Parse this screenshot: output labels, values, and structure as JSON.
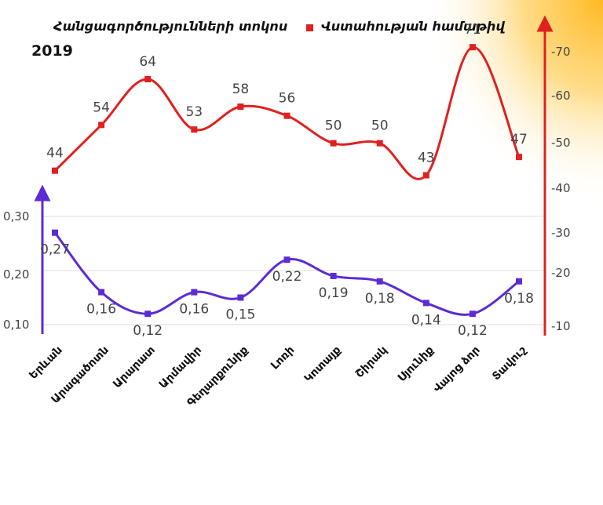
{
  "chart_data": {
    "type": "line",
    "year": "2019",
    "categories": [
      "Երևան",
      "Արագածոտն",
      "Արարատ",
      "Արմավիր",
      "Գեղարքունիք",
      "Լոռի",
      "Կոտայք",
      "Շիրակ",
      "Սյունիք",
      "Վայոց ձոր",
      "Տավուշ"
    ],
    "series": [
      {
        "name": "Հանցագործությունների տոկոս",
        "axis": "left",
        "color": "#5b2bd6",
        "values": [
          0.27,
          0.16,
          0.12,
          0.16,
          0.15,
          0.22,
          0.19,
          0.18,
          0.14,
          0.12,
          0.18
        ],
        "labels": [
          "0,27",
          "0,16",
          "0,12",
          "0,16",
          "0,15",
          "0,22",
          "0,19",
          "0,18",
          "0,14",
          "0,12",
          "0,18"
        ]
      },
      {
        "name": "Վստահության համաթիվ",
        "axis": "right",
        "color": "#e0201f",
        "values": [
          44,
          54,
          64,
          53,
          58,
          56,
          50,
          50,
          43,
          71,
          47
        ],
        "labels": [
          "44",
          "54",
          "64",
          "53",
          "58",
          "56",
          "50",
          "50",
          "43",
          "71",
          "47"
        ]
      }
    ],
    "left_axis": {
      "ticks": [
        "0,10",
        "0,20",
        "0,30"
      ]
    },
    "right_axis": {
      "ticks": [
        "-10",
        "-20",
        "-30",
        "-40",
        "-50",
        "-60",
        "-70"
      ]
    },
    "grid": true,
    "legend_position": "top"
  }
}
